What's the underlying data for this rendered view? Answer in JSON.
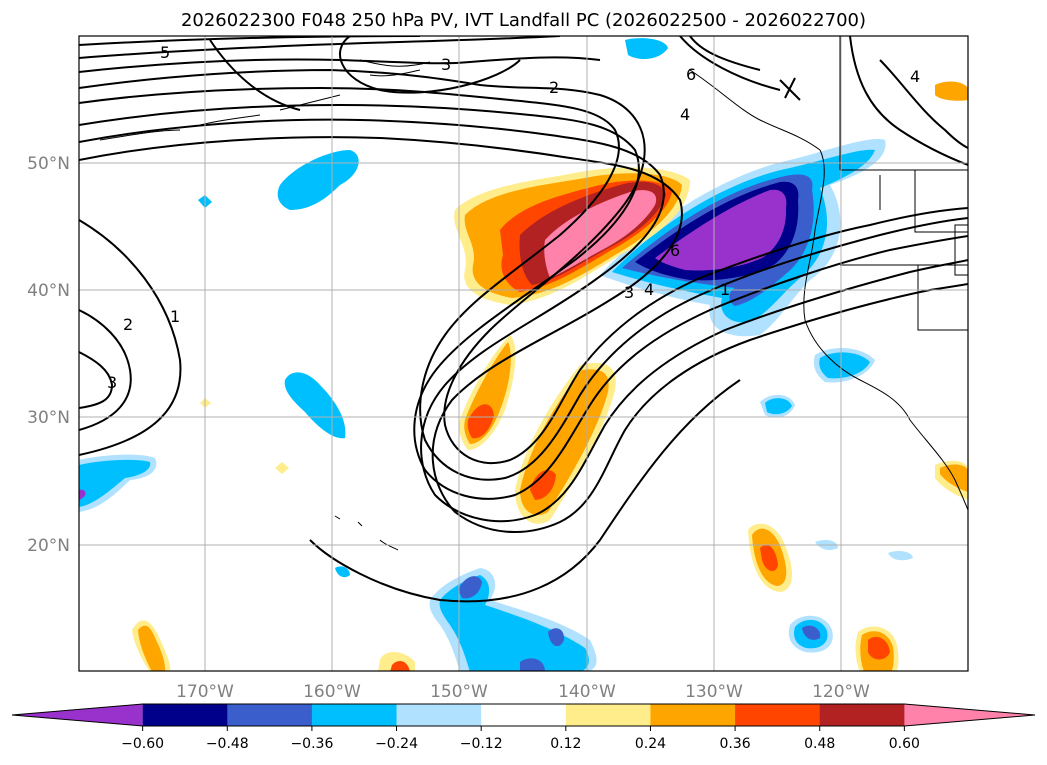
{
  "title": "2026022300 F048 250 hPa PV, IVT Landfall PC (2026022500 - 2026022700)",
  "lat_labels": [
    "50°N",
    "40°N",
    "30°N",
    "20°N"
  ],
  "lon_labels": [
    "170°W",
    "160°W",
    "150°W",
    "140°W",
    "130°W",
    "120°W"
  ],
  "pv_contour_labels": [
    "5",
    "3",
    "2",
    "6",
    "4",
    "1",
    "2",
    "3",
    "6",
    "3",
    "4",
    "1",
    "4"
  ],
  "colorbar": {
    "ticks": [
      "−0.60",
      "−0.48",
      "−0.36",
      "−0.24",
      "−0.12",
      "0.12",
      "0.24",
      "0.36",
      "0.48",
      "0.60"
    ],
    "colors": [
      "#9932cc",
      "#00008b",
      "#3a5fcd",
      "#00bfff",
      "#b0e2ff",
      "#ffffff",
      "#ffec8b",
      "#ffa500",
      "#ff4500",
      "#b22222",
      "#ff82ab"
    ]
  },
  "colors": {
    "grid": "#b0b0b0",
    "contour": "#000000",
    "tick_label": "#808080"
  }
}
